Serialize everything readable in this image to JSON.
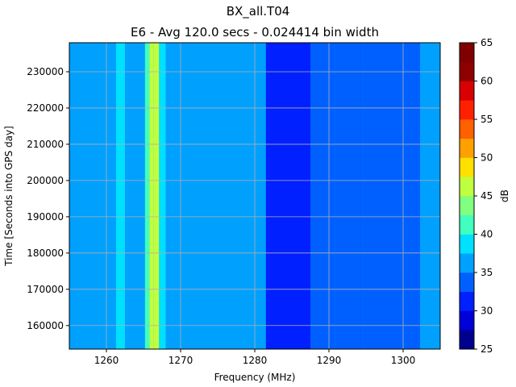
{
  "chart_data": {
    "type": "heatmap",
    "title": "BX_all.T04",
    "subtitle": "E6 - Avg 120.0 secs - 0.024414 bin width",
    "xlabel": "Frequency (MHz)",
    "ylabel": "Time [Seconds into GPS day]",
    "xlim": [
      1255,
      1305
    ],
    "ylim": [
      153500,
      238000
    ],
    "x_ticks": [
      1260,
      1270,
      1280,
      1290,
      1300
    ],
    "y_ticks": [
      160000,
      170000,
      180000,
      190000,
      200000,
      210000,
      220000,
      230000
    ],
    "grid": true,
    "colorbar": {
      "label": "dB",
      "min": 25,
      "max": 65,
      "ticks": [
        25,
        30,
        35,
        40,
        45,
        50,
        55,
        60,
        65
      ],
      "levels": [
        25,
        27.5,
        30,
        32.5,
        35,
        37.5,
        40,
        42.5,
        45,
        47.5,
        50,
        52.5,
        55,
        57.5,
        60,
        62.5,
        65
      ],
      "colors": [
        "#00008f",
        "#0000d8",
        "#0020ff",
        "#0060ff",
        "#00a0ff",
        "#00e0ff",
        "#40ffbf",
        "#80ff80",
        "#bfff40",
        "#ffe000",
        "#ffa000",
        "#ff6000",
        "#ff2000",
        "#d80000",
        "#8f0000",
        "#800000"
      ]
    },
    "bands": [
      {
        "from": 1255.0,
        "to": 1258.0,
        "value": 36
      },
      {
        "from": 1258.0,
        "to": 1259.8,
        "value": 37
      },
      {
        "from": 1259.8,
        "to": 1261.3,
        "value": 37
      },
      {
        "from": 1261.3,
        "to": 1262.5,
        "value": 39
      },
      {
        "from": 1262.5,
        "to": 1265.2,
        "value": 37
      },
      {
        "from": 1265.2,
        "to": 1265.8,
        "value": 41
      },
      {
        "from": 1265.8,
        "to": 1266.4,
        "value": 47
      },
      {
        "from": 1266.4,
        "to": 1267.1,
        "value": 46
      },
      {
        "from": 1267.1,
        "to": 1268.0,
        "value": 38
      },
      {
        "from": 1268.0,
        "to": 1271.2,
        "value": 37
      },
      {
        "from": 1271.2,
        "to": 1281.5,
        "value": 36
      },
      {
        "from": 1281.5,
        "to": 1287.5,
        "value": 32
      },
      {
        "from": 1287.5,
        "to": 1290.8,
        "value": 34
      },
      {
        "from": 1290.8,
        "to": 1294.6,
        "value": 33
      },
      {
        "from": 1294.6,
        "to": 1302.3,
        "value": 34
      },
      {
        "from": 1302.3,
        "to": 1305.0,
        "value": 36
      }
    ]
  }
}
